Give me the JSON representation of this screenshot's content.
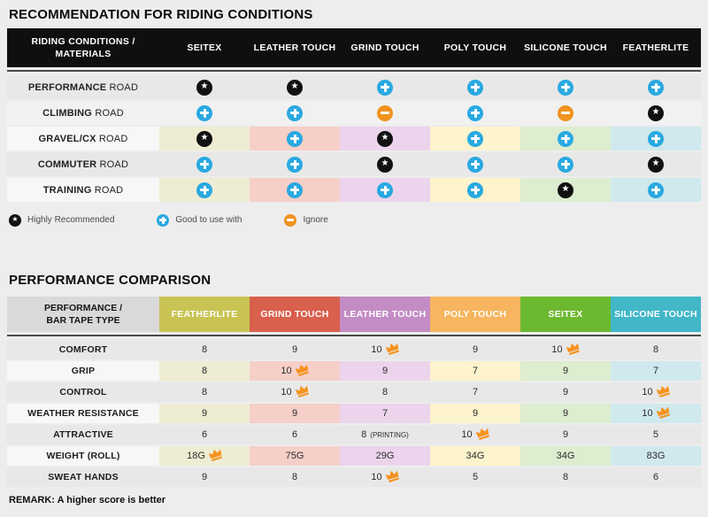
{
  "colors": {
    "page_bg": "#ededed",
    "header1_bg": "#0f0f0f",
    "header2_label_bg": "#d9d9d9",
    "divider": "#4b4b4b",
    "row_dark": "#e8e8e8",
    "row_light": "#f1f1f1",
    "label_col": "#f7f7f7",
    "star_bg": "#111111",
    "plus_bg": "#29a9e1",
    "minus_bg": "#f0931f",
    "crown": "#f6921e",
    "pale": [
      "#eeedd3",
      "#f5cfc8",
      "#ecd4ec",
      "#fdf3cd",
      "#ddedcf",
      "#cfe9ee"
    ]
  },
  "section1": {
    "title": "RECOMMENDATION FOR RIDING CONDITIONS",
    "table": {
      "header_label_line1": "RIDING CONDITIONS /",
      "header_label_line2": "MATERIALS",
      "columns": [
        "SEITEX",
        "LEATHER TOUCH",
        "GRIND TOUCH",
        "POLY TOUCH",
        "SILICONE TOUCH",
        "FEATHERLITE"
      ],
      "rows": [
        {
          "label_bold": "PERFORMANCE",
          "label_rest": "ROAD",
          "shade": "dark",
          "colored": false,
          "cells": [
            "star",
            "star",
            "plus",
            "plus",
            "plus",
            "plus"
          ]
        },
        {
          "label_bold": "CLIMBING",
          "label_rest": "ROAD",
          "shade": "light",
          "colored": false,
          "cells": [
            "plus",
            "plus",
            "minus",
            "plus",
            "minus",
            "star"
          ]
        },
        {
          "label_bold": "GRAVEL/CX",
          "label_rest": "ROAD",
          "shade": "dark",
          "colored": true,
          "cells": [
            "star",
            "plus",
            "star",
            "plus",
            "plus",
            "plus"
          ]
        },
        {
          "label_bold": "COMMUTER",
          "label_rest": "ROAD",
          "shade": "dark",
          "colored": false,
          "cells": [
            "plus",
            "plus",
            "star",
            "plus",
            "plus",
            "star"
          ]
        },
        {
          "label_bold": "TRAINING",
          "label_rest": "ROAD",
          "shade": "dark",
          "colored": true,
          "cells": [
            "plus",
            "plus",
            "plus",
            "plus",
            "star",
            "plus"
          ]
        }
      ]
    },
    "legend": [
      {
        "icon": "star",
        "label": "Highly Recommended"
      },
      {
        "icon": "plus",
        "label": "Good to use with"
      },
      {
        "icon": "minus",
        "label": "Ignore"
      }
    ]
  },
  "section2": {
    "title": "PERFORMANCE COMPARISON",
    "table": {
      "header_label_line1": "PERFORMANCE /",
      "header_label_line2": "BAR TAPE TYPE",
      "columns": [
        {
          "label": "FEATHERLITE",
          "color": "#c9c353"
        },
        {
          "label": "GRIND TOUCH",
          "color": "#d8604d"
        },
        {
          "label": "LEATHER TOUCH",
          "color": "#c48cc4"
        },
        {
          "label": "POLY TOUCH",
          "color": "#f6b55e"
        },
        {
          "label": "SEITEX",
          "color": "#6cb82f"
        },
        {
          "label": "SILICONE TOUCH",
          "color": "#41b7c8"
        }
      ],
      "rows": [
        {
          "label": "COMFORT",
          "shade": "dark",
          "colored": false,
          "cells": [
            {
              "v": "8"
            },
            {
              "v": "9"
            },
            {
              "v": "10",
              "crown": true
            },
            {
              "v": "9"
            },
            {
              "v": "10",
              "crown": true
            },
            {
              "v": "8"
            }
          ]
        },
        {
          "label": "GRIP",
          "shade": "dark",
          "colored": true,
          "cells": [
            {
              "v": "8"
            },
            {
              "v": "10",
              "crown": true
            },
            {
              "v": "9"
            },
            {
              "v": "7"
            },
            {
              "v": "9"
            },
            {
              "v": "7"
            }
          ]
        },
        {
          "label": "CONTROL",
          "shade": "dark",
          "colored": false,
          "cells": [
            {
              "v": "8"
            },
            {
              "v": "10",
              "crown": true
            },
            {
              "v": "8"
            },
            {
              "v": "7"
            },
            {
              "v": "9"
            },
            {
              "v": "10",
              "crown": true
            }
          ]
        },
        {
          "label": "WEATHER RESISTANCE",
          "shade": "dark",
          "colored": true,
          "cells": [
            {
              "v": "9"
            },
            {
              "v": "9"
            },
            {
              "v": "7"
            },
            {
              "v": "9"
            },
            {
              "v": "9"
            },
            {
              "v": "10",
              "crown": true
            }
          ]
        },
        {
          "label": "ATTRACTIVE",
          "shade": "dark",
          "colored": false,
          "cells": [
            {
              "v": "6"
            },
            {
              "v": "6"
            },
            {
              "v": "8",
              "suffix": "(PRINTING)"
            },
            {
              "v": "10",
              "crown": true
            },
            {
              "v": "9"
            },
            {
              "v": "5"
            }
          ]
        },
        {
          "label": "WEIGHT (ROLL)",
          "shade": "dark",
          "colored": true,
          "cells": [
            {
              "v": "18G",
              "crown": true
            },
            {
              "v": "75G"
            },
            {
              "v": "29G"
            },
            {
              "v": "34G"
            },
            {
              "v": "34G"
            },
            {
              "v": "83G"
            }
          ]
        },
        {
          "label": "SWEAT HANDS",
          "shade": "dark",
          "colored": false,
          "cells": [
            {
              "v": "9"
            },
            {
              "v": "8"
            },
            {
              "v": "10",
              "crown": true
            },
            {
              "v": "5"
            },
            {
              "v": "8"
            },
            {
              "v": "6"
            }
          ]
        }
      ]
    },
    "remark": "REMARK: A higher score is better"
  },
  "chart_data": [
    {
      "type": "table",
      "title": "RECOMMENDATION FOR RIDING CONDITIONS",
      "columns": [
        "RIDING CONDITIONS / MATERIALS",
        "SEITEX",
        "LEATHER TOUCH",
        "GRIND TOUCH",
        "POLY TOUCH",
        "SILICONE TOUCH",
        "FEATHERLITE"
      ],
      "rows": [
        [
          "PERFORMANCE ROAD",
          "highly-recommended",
          "highly-recommended",
          "good-to-use-with",
          "good-to-use-with",
          "good-to-use-with",
          "good-to-use-with"
        ],
        [
          "CLIMBING ROAD",
          "good-to-use-with",
          "good-to-use-with",
          "ignore",
          "good-to-use-with",
          "ignore",
          "highly-recommended"
        ],
        [
          "GRAVEL/CX ROAD",
          "highly-recommended",
          "good-to-use-with",
          "highly-recommended",
          "good-to-use-with",
          "good-to-use-with",
          "good-to-use-with"
        ],
        [
          "COMMUTER ROAD",
          "good-to-use-with",
          "good-to-use-with",
          "highly-recommended",
          "good-to-use-with",
          "good-to-use-with",
          "highly-recommended"
        ],
        [
          "TRAINING ROAD",
          "good-to-use-with",
          "good-to-use-with",
          "good-to-use-with",
          "good-to-use-with",
          "highly-recommended",
          "good-to-use-with"
        ]
      ],
      "legend": {
        "star": "Highly Recommended",
        "plus": "Good to use with",
        "minus": "Ignore"
      }
    },
    {
      "type": "table",
      "title": "PERFORMANCE COMPARISON",
      "columns": [
        "PERFORMANCE / BAR TAPE TYPE",
        "FEATHERLITE",
        "GRIND TOUCH",
        "LEATHER TOUCH",
        "POLY TOUCH",
        "SEITEX",
        "SILICONE TOUCH"
      ],
      "rows": [
        [
          "COMFORT",
          "8",
          "9",
          "10 (best)",
          "9",
          "10 (best)",
          "8"
        ],
        [
          "GRIP",
          "8",
          "10 (best)",
          "9",
          "7",
          "9",
          "7"
        ],
        [
          "CONTROL",
          "8",
          "10 (best)",
          "8",
          "7",
          "9",
          "10 (best)"
        ],
        [
          "WEATHER RESISTANCE",
          "9",
          "9",
          "7",
          "9",
          "9",
          "10 (best)"
        ],
        [
          "ATTRACTIVE",
          "6",
          "6",
          "8 (PRINTING)",
          "10 (best)",
          "9",
          "5"
        ],
        [
          "WEIGHT (ROLL)",
          "18G (best)",
          "75G",
          "29G",
          "34G",
          "34G",
          "83G"
        ],
        [
          "SWEAT HANDS",
          "9",
          "8",
          "10 (best)",
          "5",
          "8",
          "6"
        ]
      ],
      "note": "REMARK: A higher score is better"
    }
  ]
}
